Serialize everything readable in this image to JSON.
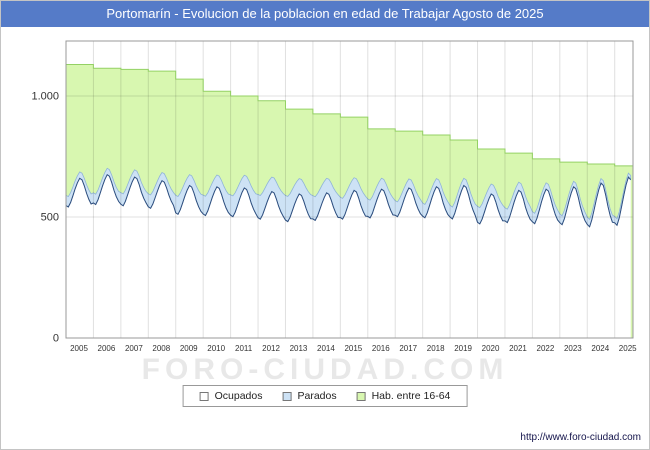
{
  "title": "Portomarín - Evolucion de la poblacion en edad de Trabajar Agosto de 2025",
  "watermark": "FORO-CIUDAD.COM",
  "footer": {
    "url": "http://www.foro-ciudad.com"
  },
  "legend": [
    {
      "label": "Ocupados",
      "color": "#ffffff",
      "border": "#777777"
    },
    {
      "label": "Parados",
      "color": "#cde2f5",
      "border": "#777777"
    },
    {
      "label": "Hab. entre 16-64",
      "color": "#d8f7b0",
      "border": "#777777"
    }
  ],
  "axes": {
    "y_ticks": [
      {
        "label": "0",
        "value": 0
      },
      {
        "label": "500",
        "value": 500
      },
      {
        "label": "1.000",
        "value": 1000
      }
    ],
    "x_tick_labels": [
      "2005",
      "2006",
      "2007",
      "2008",
      "2009",
      "2010",
      "2011",
      "2012",
      "2013",
      "2014",
      "2015",
      "2016",
      "2017",
      "2018",
      "2019",
      "2020",
      "2021",
      "2022",
      "2023",
      "2024",
      "2025"
    ]
  },
  "chart_data": {
    "type": "area",
    "title": "Portomarín - Evolucion de la poblacion en edad de Trabajar Agosto de 2025",
    "xlabel": "",
    "ylabel": "",
    "ylim": [
      0,
      1250
    ],
    "grid": true,
    "legend_position": "bottom",
    "y_gridlines": [
      500,
      1000
    ],
    "years": [
      2005,
      2006,
      2007,
      2008,
      2009,
      2010,
      2011,
      2012,
      2013,
      2014,
      2015,
      2016,
      2017,
      2018,
      2019,
      2020,
      2021,
      2022,
      2023,
      2024,
      2025
    ],
    "months_final_year": 8,
    "seasonal_shape": [
      0.1,
      0.05,
      0.2,
      0.42,
      0.65,
      0.85,
      1.0,
      0.95,
      0.75,
      0.5,
      0.3,
      0.15
    ],
    "series": [
      {
        "name": "Hab. entre 16-64",
        "style": "step-area",
        "annual_values": [
          1130,
          1115,
          1110,
          1103,
          1070,
          1020,
          1000,
          980,
          946,
          926,
          913,
          864,
          855,
          839,
          818,
          781,
          764,
          740,
          727,
          719,
          711
        ]
      },
      {
        "name": "Ocupados",
        "style": "seasonal-line",
        "annual_min": [
          535,
          545,
          540,
          530,
          505,
          500,
          495,
          485,
          475,
          480,
          485,
          490,
          495,
          490,
          485,
          465,
          470,
          465,
          460,
          450,
          455
        ],
        "annual_max": [
          660,
          675,
          665,
          650,
          630,
          625,
          620,
          605,
          595,
          600,
          610,
          615,
          620,
          625,
          630,
          595,
          610,
          615,
          625,
          640,
          665
        ]
      },
      {
        "name": "Parados",
        "style": "stacked-band",
        "annual_thickness": [
          35,
          35,
          40,
          45,
          60,
          65,
          70,
          80,
          85,
          80,
          70,
          60,
          50,
          45,
          40,
          55,
          45,
          35,
          30,
          25,
          22
        ]
      }
    ],
    "colors": {
      "hab_fill": "#d8f7b0",
      "hab_line": "#94d164",
      "parados_fill": "#cde2f5",
      "parados_line": "#8fb4d8",
      "ocupados_line": "#2e4e7e",
      "grid": "rgba(0,0,0,0.12)",
      "plot_border": "#999999",
      "title_bar": "#557bc8"
    }
  }
}
